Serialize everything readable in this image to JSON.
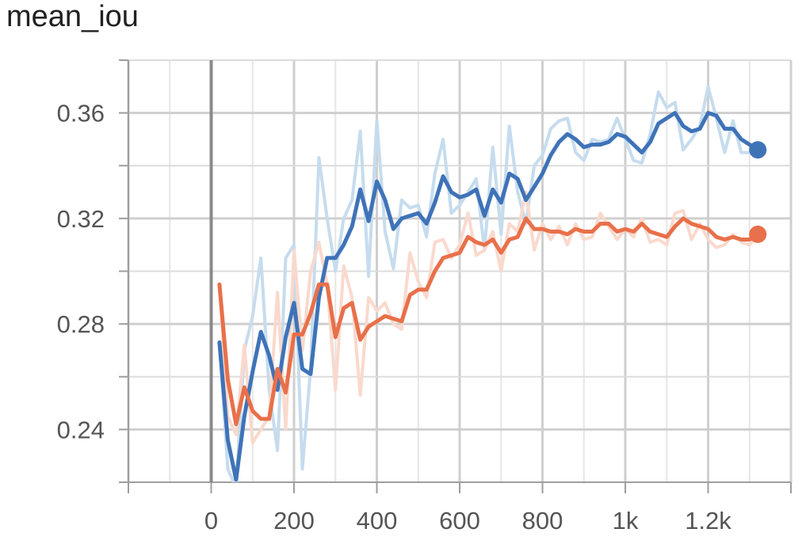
{
  "chart_data": {
    "type": "line",
    "title": "mean_iou",
    "xlabel": "",
    "ylabel": "",
    "xlim": [
      -200,
      1400
    ],
    "ylim": [
      0.22,
      0.38
    ],
    "xticks": [
      {
        "value": 0,
        "label": "0"
      },
      {
        "value": 200,
        "label": "200"
      },
      {
        "value": 400,
        "label": "400"
      },
      {
        "value": 600,
        "label": "600"
      },
      {
        "value": 800,
        "label": "800"
      },
      {
        "value": 1000,
        "label": "1k"
      },
      {
        "value": 1200,
        "label": "1.2k"
      }
    ],
    "yticks": [
      {
        "value": 0.24,
        "label": "0.24"
      },
      {
        "value": 0.28,
        "label": "0.28"
      },
      {
        "value": 0.32,
        "label": "0.32"
      },
      {
        "value": 0.36,
        "label": "0.36"
      }
    ],
    "grid": true,
    "series": [
      {
        "color": "#3f73b8",
        "raw_color": "#c6dcee",
        "x": [
          20,
          40,
          60,
          80,
          100,
          120,
          140,
          160,
          180,
          200,
          220,
          240,
          260,
          280,
          300,
          320,
          340,
          360,
          380,
          400,
          420,
          440,
          460,
          480,
          500,
          520,
          540,
          560,
          580,
          600,
          620,
          640,
          660,
          680,
          700,
          720,
          740,
          760,
          780,
          800,
          820,
          840,
          860,
          880,
          900,
          920,
          940,
          960,
          980,
          1000,
          1020,
          1040,
          1060,
          1080,
          1100,
          1120,
          1140,
          1160,
          1180,
          1200,
          1220,
          1240,
          1260,
          1280,
          1300,
          1320
        ],
        "smoothed": [
          0.273,
          0.236,
          0.221,
          0.245,
          0.262,
          0.277,
          0.268,
          0.255,
          0.275,
          0.288,
          0.263,
          0.261,
          0.29,
          0.305,
          0.305,
          0.31,
          0.317,
          0.331,
          0.319,
          0.334,
          0.327,
          0.316,
          0.32,
          0.321,
          0.322,
          0.318,
          0.326,
          0.336,
          0.33,
          0.328,
          0.329,
          0.331,
          0.321,
          0.331,
          0.326,
          0.337,
          0.335,
          0.327,
          0.332,
          0.337,
          0.344,
          0.349,
          0.352,
          0.35,
          0.347,
          0.348,
          0.348,
          0.349,
          0.352,
          0.351,
          0.348,
          0.345,
          0.349,
          0.356,
          0.358,
          0.36,
          0.355,
          0.353,
          0.354,
          0.36,
          0.359,
          0.354,
          0.354,
          0.35,
          0.348,
          0.346
        ],
        "raw": [
          0.273,
          0.225,
          0.218,
          0.27,
          0.283,
          0.305,
          0.255,
          0.232,
          0.305,
          0.31,
          0.225,
          0.263,
          0.343,
          0.32,
          0.3,
          0.32,
          0.327,
          0.353,
          0.298,
          0.357,
          0.315,
          0.301,
          0.327,
          0.324,
          0.325,
          0.313,
          0.337,
          0.35,
          0.322,
          0.325,
          0.33,
          0.335,
          0.308,
          0.347,
          0.314,
          0.355,
          0.33,
          0.318,
          0.34,
          0.344,
          0.354,
          0.357,
          0.358,
          0.345,
          0.342,
          0.35,
          0.349,
          0.35,
          0.358,
          0.35,
          0.342,
          0.341,
          0.352,
          0.368,
          0.362,
          0.364,
          0.346,
          0.35,
          0.355,
          0.37,
          0.358,
          0.345,
          0.357,
          0.345,
          0.345,
          0.346
        ]
      },
      {
        "color": "#e8704a",
        "raw_color": "#fad9cd",
        "x": [
          20,
          40,
          60,
          80,
          100,
          120,
          140,
          160,
          180,
          200,
          220,
          240,
          260,
          280,
          300,
          320,
          340,
          360,
          380,
          400,
          420,
          440,
          460,
          480,
          500,
          520,
          540,
          560,
          580,
          600,
          620,
          640,
          660,
          680,
          700,
          720,
          740,
          760,
          780,
          800,
          820,
          840,
          860,
          880,
          900,
          920,
          940,
          960,
          980,
          1000,
          1020,
          1040,
          1060,
          1080,
          1100,
          1120,
          1140,
          1160,
          1180,
          1200,
          1220,
          1240,
          1260,
          1280,
          1300,
          1320
        ],
        "smoothed": [
          0.295,
          0.259,
          0.242,
          0.256,
          0.247,
          0.244,
          0.244,
          0.263,
          0.254,
          0.276,
          0.276,
          0.284,
          0.295,
          0.295,
          0.275,
          0.286,
          0.288,
          0.274,
          0.279,
          0.281,
          0.283,
          0.282,
          0.281,
          0.291,
          0.293,
          0.293,
          0.3,
          0.305,
          0.306,
          0.307,
          0.313,
          0.311,
          0.31,
          0.312,
          0.307,
          0.312,
          0.313,
          0.32,
          0.316,
          0.316,
          0.315,
          0.315,
          0.314,
          0.316,
          0.315,
          0.315,
          0.318,
          0.318,
          0.315,
          0.316,
          0.315,
          0.318,
          0.315,
          0.314,
          0.313,
          0.317,
          0.32,
          0.318,
          0.317,
          0.316,
          0.313,
          0.312,
          0.313,
          0.312,
          0.312,
          0.314
        ],
        "raw": [
          0.295,
          0.245,
          0.238,
          0.272,
          0.235,
          0.24,
          0.245,
          0.292,
          0.24,
          0.308,
          0.27,
          0.3,
          0.311,
          0.295,
          0.255,
          0.302,
          0.29,
          0.253,
          0.29,
          0.285,
          0.288,
          0.28,
          0.278,
          0.307,
          0.296,
          0.29,
          0.311,
          0.312,
          0.305,
          0.31,
          0.322,
          0.306,
          0.308,
          0.315,
          0.3,
          0.318,
          0.315,
          0.33,
          0.308,
          0.318,
          0.312,
          0.317,
          0.31,
          0.318,
          0.312,
          0.313,
          0.322,
          0.317,
          0.312,
          0.316,
          0.313,
          0.32,
          0.311,
          0.312,
          0.31,
          0.322,
          0.323,
          0.312,
          0.318,
          0.312,
          0.309,
          0.31,
          0.314,
          0.311,
          0.31,
          0.314
        ]
      }
    ]
  }
}
